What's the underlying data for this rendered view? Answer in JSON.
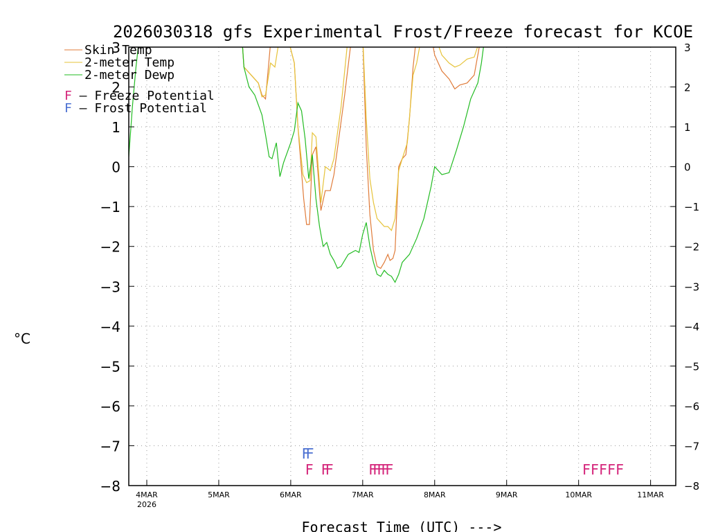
{
  "chart_data": {
    "type": "line",
    "title": "2026030318 gfs Experimental Frost/Freeze forecast for KCOE",
    "ylabel": "°C",
    "xlabel": "Forecast Time (UTC) --->",
    "ylim": [
      -8,
      3
    ],
    "xlim": [
      -0.25,
      7.35
    ],
    "grid": true,
    "yticks": [
      -8,
      -7,
      -6,
      -5,
      -4,
      -3,
      -2,
      -1,
      0,
      1,
      2,
      3
    ],
    "ytick_labels": [
      "−8",
      "−7",
      "−6",
      "−5",
      "−4",
      "−3",
      "−2",
      "−1",
      "0",
      "1",
      "2",
      "3"
    ],
    "x_tick_labels": [
      "4MAR",
      "5MAR",
      "6MAR",
      "7MAR",
      "8MAR",
      "9MAR",
      "10MAR",
      "11MAR"
    ],
    "x_first_sublabel": "2026",
    "legend": [
      {
        "name": "Skin Temp",
        "color": "#e07b39"
      },
      {
        "name": "2-meter Temp",
        "color": "#e6c33a"
      },
      {
        "name": "2-meter Dewp",
        "color": "#22bb22"
      }
    ],
    "potential_legend": [
      {
        "letter": "F",
        "text": " – Freeze Potential",
        "color": "#d4247a"
      },
      {
        "letter": "F",
        "text": " – Frost Potential",
        "color": "#4a6fd1"
      }
    ],
    "series": [
      {
        "name": "Skin Temp",
        "color": "#e07b39",
        "points": [
          [
            1.32,
            3.3
          ],
          [
            1.35,
            2.5
          ],
          [
            1.45,
            2.3
          ],
          [
            1.55,
            2.1
          ],
          [
            1.6,
            1.8
          ],
          [
            1.65,
            1.7
          ],
          [
            1.73,
            3.3
          ],
          [
            1.95,
            3.3
          ],
          [
            2.05,
            2.6
          ],
          [
            2.1,
            1.0
          ],
          [
            2.18,
            -0.8
          ],
          [
            2.22,
            -1.45
          ],
          [
            2.26,
            -1.45
          ],
          [
            2.3,
            0.3
          ],
          [
            2.35,
            0.5
          ],
          [
            2.42,
            -1.1
          ],
          [
            2.48,
            -0.6
          ],
          [
            2.55,
            -0.6
          ],
          [
            2.6,
            -0.2
          ],
          [
            2.75,
            1.8
          ],
          [
            2.85,
            3.3
          ],
          [
            3.0,
            3.3
          ],
          [
            3.05,
            0.5
          ],
          [
            3.1,
            -1.2
          ],
          [
            3.15,
            -2.1
          ],
          [
            3.2,
            -2.5
          ],
          [
            3.25,
            -2.55
          ],
          [
            3.3,
            -2.4
          ],
          [
            3.35,
            -2.2
          ],
          [
            3.38,
            -2.35
          ],
          [
            3.42,
            -2.3
          ],
          [
            3.45,
            -2.1
          ],
          [
            3.5,
            0.0
          ],
          [
            3.55,
            0.2
          ],
          [
            3.6,
            0.3
          ],
          [
            3.65,
            1.2
          ],
          [
            3.7,
            2.5
          ],
          [
            3.75,
            3.3
          ],
          [
            3.95,
            3.3
          ],
          [
            4.0,
            2.8
          ],
          [
            4.1,
            2.4
          ],
          [
            4.2,
            2.2
          ],
          [
            4.28,
            1.95
          ],
          [
            4.35,
            2.05
          ],
          [
            4.45,
            2.1
          ],
          [
            4.55,
            2.3
          ],
          [
            4.65,
            3.3
          ]
        ]
      },
      {
        "name": "2-meter Temp",
        "color": "#e6c33a",
        "points": [
          [
            1.32,
            3.3
          ],
          [
            1.35,
            2.5
          ],
          [
            1.45,
            2.3
          ],
          [
            1.55,
            2.1
          ],
          [
            1.6,
            1.75
          ],
          [
            1.65,
            1.8
          ],
          [
            1.72,
            2.6
          ],
          [
            1.78,
            2.5
          ],
          [
            1.85,
            3.3
          ],
          [
            1.95,
            3.3
          ],
          [
            2.05,
            2.6
          ],
          [
            2.1,
            1.0
          ],
          [
            2.17,
            -0.2
          ],
          [
            2.22,
            -0.4
          ],
          [
            2.27,
            -0.35
          ],
          [
            2.3,
            0.85
          ],
          [
            2.35,
            0.75
          ],
          [
            2.42,
            -0.9
          ],
          [
            2.48,
            0.0
          ],
          [
            2.55,
            -0.1
          ],
          [
            2.6,
            0.2
          ],
          [
            2.7,
            1.5
          ],
          [
            2.8,
            3.3
          ],
          [
            3.0,
            3.3
          ],
          [
            3.05,
            1.2
          ],
          [
            3.1,
            -0.3
          ],
          [
            3.15,
            -0.9
          ],
          [
            3.2,
            -1.3
          ],
          [
            3.25,
            -1.4
          ],
          [
            3.3,
            -1.5
          ],
          [
            3.35,
            -1.5
          ],
          [
            3.4,
            -1.6
          ],
          [
            3.45,
            -1.3
          ],
          [
            3.5,
            -0.1
          ],
          [
            3.55,
            0.2
          ],
          [
            3.62,
            0.6
          ],
          [
            3.7,
            2.3
          ],
          [
            3.75,
            2.6
          ],
          [
            3.82,
            3.3
          ],
          [
            4.0,
            3.3
          ],
          [
            4.1,
            2.8
          ],
          [
            4.2,
            2.6
          ],
          [
            4.28,
            2.5
          ],
          [
            4.35,
            2.55
          ],
          [
            4.45,
            2.7
          ],
          [
            4.55,
            2.75
          ],
          [
            4.65,
            3.3
          ]
        ]
      },
      {
        "name": "2-meter Dewp",
        "color": "#22bb22",
        "points": [
          [
            -0.25,
            0.25
          ],
          [
            -0.2,
            1.5
          ],
          [
            -0.15,
            2.5
          ],
          [
            -0.1,
            3.3
          ],
          [
            1.32,
            3.3
          ],
          [
            1.35,
            2.5
          ],
          [
            1.42,
            2.0
          ],
          [
            1.5,
            1.8
          ],
          [
            1.55,
            1.55
          ],
          [
            1.6,
            1.3
          ],
          [
            1.65,
            0.8
          ],
          [
            1.7,
            0.25
          ],
          [
            1.74,
            0.2
          ],
          [
            1.8,
            0.6
          ],
          [
            1.85,
            -0.25
          ],
          [
            1.9,
            0.1
          ],
          [
            2.0,
            0.6
          ],
          [
            2.05,
            0.9
          ],
          [
            2.1,
            1.6
          ],
          [
            2.15,
            1.4
          ],
          [
            2.2,
            0.7
          ],
          [
            2.25,
            -0.3
          ],
          [
            2.3,
            0.3
          ],
          [
            2.35,
            -0.8
          ],
          [
            2.4,
            -1.5
          ],
          [
            2.45,
            -2.0
          ],
          [
            2.5,
            -1.9
          ],
          [
            2.55,
            -2.2
          ],
          [
            2.6,
            -2.35
          ],
          [
            2.65,
            -2.55
          ],
          [
            2.7,
            -2.5
          ],
          [
            2.8,
            -2.2
          ],
          [
            2.9,
            -2.1
          ],
          [
            2.95,
            -2.15
          ],
          [
            3.0,
            -1.7
          ],
          [
            3.05,
            -1.4
          ],
          [
            3.1,
            -2.0
          ],
          [
            3.15,
            -2.4
          ],
          [
            3.2,
            -2.7
          ],
          [
            3.25,
            -2.75
          ],
          [
            3.3,
            -2.6
          ],
          [
            3.35,
            -2.7
          ],
          [
            3.4,
            -2.75
          ],
          [
            3.45,
            -2.9
          ],
          [
            3.5,
            -2.7
          ],
          [
            3.55,
            -2.4
          ],
          [
            3.65,
            -2.2
          ],
          [
            3.75,
            -1.8
          ],
          [
            3.85,
            -1.3
          ],
          [
            3.95,
            -0.5
          ],
          [
            4.0,
            0.0
          ],
          [
            4.1,
            -0.2
          ],
          [
            4.2,
            -0.15
          ],
          [
            4.3,
            0.4
          ],
          [
            4.4,
            1.0
          ],
          [
            4.5,
            1.7
          ],
          [
            4.6,
            2.1
          ],
          [
            4.65,
            2.6
          ],
          [
            4.7,
            3.3
          ]
        ]
      }
    ],
    "frost_marks": {
      "text": "FF",
      "color": "#4a6fd1",
      "x": 2.15,
      "y": -7.2
    },
    "freeze_marks": [
      {
        "text": "F",
        "color": "#d4247a",
        "x": 2.2,
        "y": -7.6
      },
      {
        "text": "FF",
        "color": "#d4247a",
        "x": 2.42,
        "y": -7.6
      },
      {
        "text": "FFFFF",
        "color": "#d4247a",
        "x": 3.08,
        "y": -7.6
      },
      {
        "text": "FFFFF",
        "color": "#d4247a",
        "x": 6.05,
        "y": -7.6
      }
    ]
  }
}
